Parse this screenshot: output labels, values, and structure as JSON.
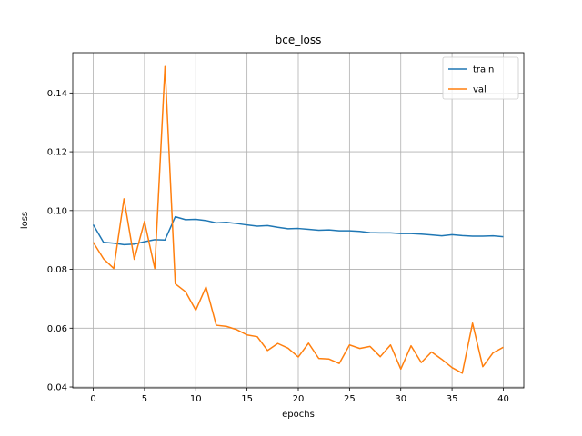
{
  "chart_data": {
    "type": "line",
    "title": "bce_loss",
    "xlabel": "epochs",
    "ylabel": "loss",
    "xlim": [
      -2,
      42
    ],
    "ylim": [
      0.0397,
      0.1537
    ],
    "xticks": [
      0,
      5,
      10,
      15,
      20,
      25,
      30,
      35,
      40
    ],
    "xtick_labels": [
      "0",
      "5",
      "10",
      "15",
      "20",
      "25",
      "30",
      "35",
      "40"
    ],
    "yticks": [
      0.04,
      0.06,
      0.08,
      0.1,
      0.12,
      0.14
    ],
    "ytick_labels": [
      "0.04",
      "0.06",
      "0.08",
      "0.10",
      "0.12",
      "0.14"
    ],
    "grid": true,
    "legend_position": "top-right",
    "x": [
      0,
      1,
      2,
      3,
      4,
      5,
      6,
      7,
      8,
      9,
      10,
      11,
      12,
      13,
      14,
      15,
      16,
      17,
      18,
      19,
      20,
      21,
      22,
      23,
      24,
      25,
      26,
      27,
      28,
      29,
      30,
      31,
      32,
      33,
      34,
      35,
      36,
      37,
      38,
      39,
      40
    ],
    "series": [
      {
        "name": "train",
        "color": "#1f77b4",
        "values": [
          0.0952,
          0.0892,
          0.0889,
          0.0884,
          0.0886,
          0.0894,
          0.0901,
          0.09,
          0.0979,
          0.0969,
          0.097,
          0.0966,
          0.0958,
          0.096,
          0.0956,
          0.0951,
          0.0947,
          0.0949,
          0.0943,
          0.0938,
          0.0939,
          0.0936,
          0.0933,
          0.0934,
          0.0931,
          0.0931,
          0.0929,
          0.0925,
          0.0924,
          0.0924,
          0.0922,
          0.0922,
          0.092,
          0.0917,
          0.0914,
          0.0918,
          0.0915,
          0.0913,
          0.0913,
          0.0914,
          0.0911
        ]
      },
      {
        "name": "val",
        "color": "#ff7f0e",
        "values": [
          0.0892,
          0.0836,
          0.0803,
          0.104,
          0.0834,
          0.0963,
          0.0803,
          0.149,
          0.0751,
          0.0724,
          0.0661,
          0.074,
          0.061,
          0.0606,
          0.0595,
          0.0577,
          0.0571,
          0.0524,
          0.0548,
          0.0532,
          0.0502,
          0.0549,
          0.0497,
          0.0495,
          0.048,
          0.0543,
          0.0531,
          0.0538,
          0.0503,
          0.0543,
          0.0461,
          0.054,
          0.0483,
          0.0519,
          0.0494,
          0.0466,
          0.0447,
          0.0617,
          0.0469,
          0.0516,
          0.0535
        ]
      }
    ]
  }
}
